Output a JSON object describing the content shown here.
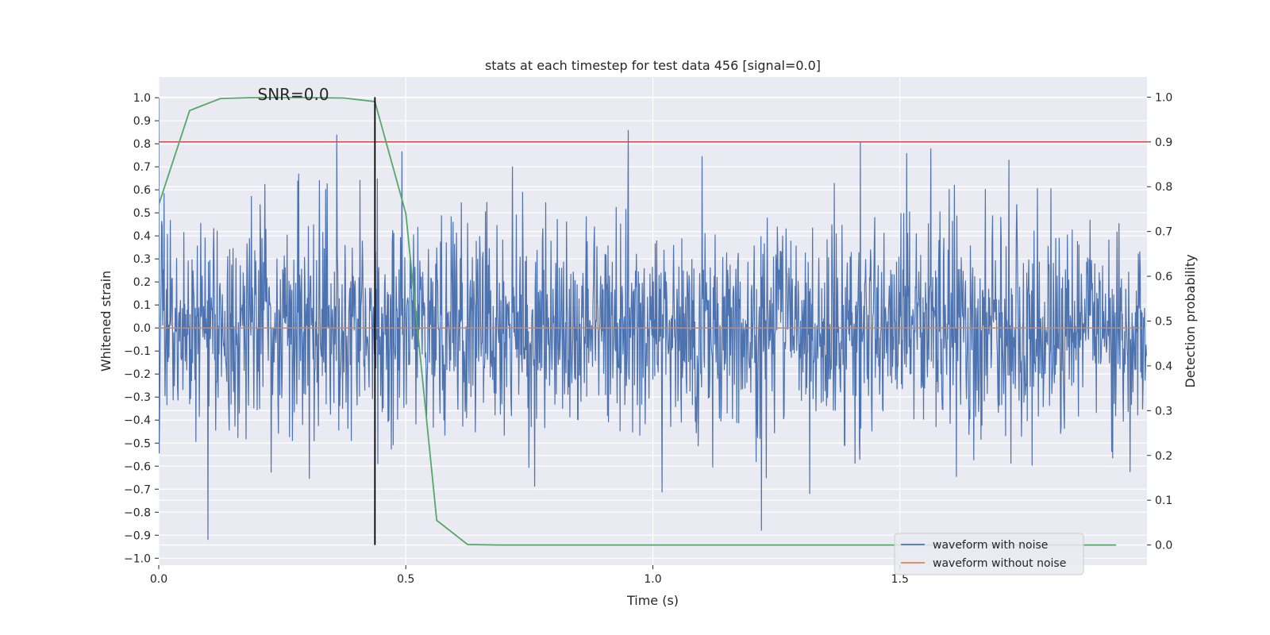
{
  "chart_data": {
    "type": "line",
    "title": "stats at each timestep for test data 456 [signal=0.0]",
    "xlabel": "Time (s)",
    "ylabel_left": "Whitened strain",
    "ylabel_right": "Detection probability",
    "xlim": [
      0.0,
      2.0
    ],
    "ylim_left": [
      -1.03,
      1.09
    ],
    "ylim_right": [
      -0.045,
      1.045
    ],
    "x_ticks": [
      0.0,
      0.5,
      1.0,
      1.5
    ],
    "x_tick_labels": [
      "0.0",
      "0.5",
      "1.0",
      "1.5"
    ],
    "y_left_ticks": [
      1.0,
      0.9,
      0.8,
      0.7,
      0.6,
      0.5,
      0.4,
      0.3,
      0.2,
      0.1,
      0.0,
      -0.1,
      -0.2,
      -0.3,
      -0.4,
      -0.5,
      -0.6,
      -0.7,
      -0.8,
      -0.9,
      -1.0
    ],
    "y_left_tick_labels": [
      "1.0",
      "0.9",
      "0.8",
      "0.7",
      "0.6",
      "0.5",
      "0.4",
      "0.3",
      "0.2",
      "0.1",
      "0.0",
      "−0.1",
      "−0.2",
      "−0.3",
      "−0.4",
      "−0.5",
      "−0.6",
      "−0.7",
      "−0.8",
      "−0.9",
      "−1.0"
    ],
    "y_right_ticks": [
      1.0,
      0.9,
      0.8,
      0.7,
      0.6,
      0.5,
      0.4,
      0.3,
      0.2,
      0.1,
      0.0
    ],
    "y_right_tick_labels": [
      "1.0",
      "0.9",
      "0.8",
      "0.7",
      "0.6",
      "0.5",
      "0.4",
      "0.3",
      "0.2",
      "0.1",
      "0.0"
    ],
    "annotation": "SNR=0.0",
    "annotation_x": 0.2,
    "annotation_y": 1.0,
    "series": [
      {
        "name": "waveform with noise",
        "color": "#4c72b0",
        "axis": "left",
        "kind": "noise",
        "samples": 2048,
        "std": 0.23,
        "seed": 456,
        "peaks": [
          [
            0.1,
            -0.92
          ],
          [
            0.36,
            0.84
          ],
          [
            0.95,
            0.86
          ],
          [
            1.22,
            -0.88
          ],
          [
            1.42,
            0.81
          ],
          [
            0.0,
            1.0
          ]
        ]
      },
      {
        "name": "waveform without noise",
        "color": "#dd8452",
        "axis": "left",
        "kind": "constant",
        "value": 0.0,
        "x_end": 1.99
      },
      {
        "name": "detection probability",
        "color": "#55a868",
        "axis": "right",
        "kind": "line",
        "x": [
          0.0,
          0.0625,
          0.125,
          0.1875,
          0.25,
          0.3125,
          0.375,
          0.4375,
          0.5,
          0.5625,
          0.625,
          0.6875,
          0.75,
          0.8125,
          0.875,
          0.9375,
          1.0,
          1.0625,
          1.125,
          1.1875,
          1.25,
          1.3125,
          1.375,
          1.4375,
          1.5,
          1.5625,
          1.625,
          1.6875,
          1.75,
          1.8125,
          1.875,
          1.9375
        ],
        "values": [
          0.76,
          0.97,
          0.997,
          0.999,
          0.999,
          0.999,
          0.998,
          0.99,
          0.74,
          0.055,
          0.001,
          0.0,
          0.0,
          0.0,
          0.0,
          0.0,
          0.0,
          0.0,
          0.0,
          0.0,
          0.0,
          0.0,
          0.0,
          0.0,
          0.0,
          0.0,
          0.0,
          0.0,
          0.0,
          0.0,
          0.0,
          0.0
        ]
      }
    ],
    "threshold": {
      "axis": "right",
      "value": 0.9,
      "color": "#c44e52"
    },
    "marker_line": {
      "x": 0.4375,
      "y_from": 0.0,
      "y_to": 1.0,
      "axis": "right",
      "color": "#000000"
    },
    "legend": {
      "location": "lower-right",
      "entries": [
        {
          "label": "waveform with noise",
          "color": "#4c72b0"
        },
        {
          "label": "waveform without noise",
          "color": "#dd8452"
        }
      ]
    },
    "colors": {
      "background": "#eaeaf2",
      "grid": "#ffffff",
      "text": "#262626"
    }
  }
}
